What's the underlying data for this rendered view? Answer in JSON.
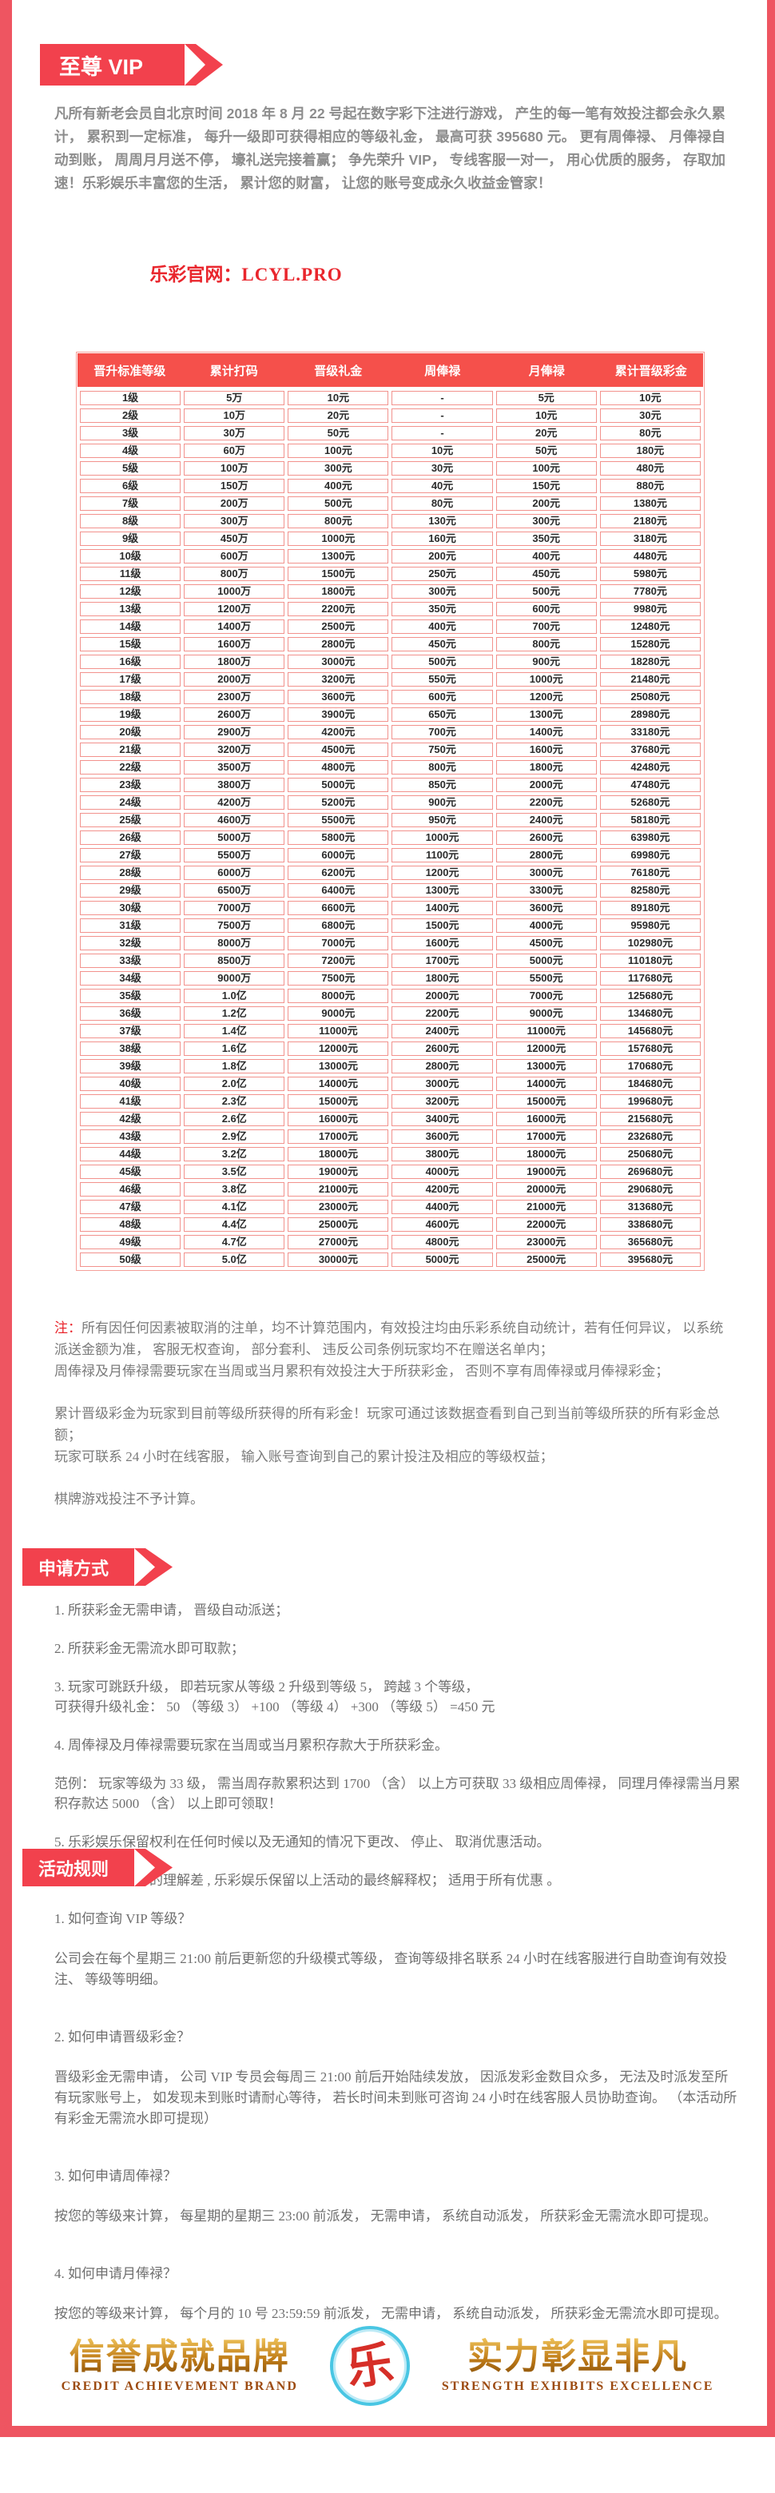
{
  "colors": {
    "accent_red": "#f2414d",
    "stripe_red": "#ee5561",
    "table_header_red": "#f5504b",
    "table_border_pink": "#f2928d",
    "red_text": "#e9262d",
    "intro_gray": "#8d8d8d",
    "gold": "#c07c18",
    "logo_cyan": "#49c6e3"
  },
  "header": {
    "ribbon": "至尊 VIP",
    "intro": "凡所有新老会员自北京时间 2018 年 8 月 22 号起在数字彩下注进行游戏， 产生的每一笔有效投注都会永久累计， 累积到一定标准， 每升一级即可获得相应的等级礼金， 最高可获 395680 元。 更有周俸禄、 月俸禄自动到账， 周周月月送不停， 壕礼送完接着赢； 争先荣升 VIP， 专线客服一对一， 用心优质的服务， 存取加速！乐彩娱乐丰富您的生活， 累计您的财富， 让您的账号变成永久收益金管家！",
    "site_label": "乐彩官网：",
    "site_domain": "LCYL.PRO"
  },
  "table": {
    "headers": [
      "晋升标准等级",
      "累计打码",
      "晋级礼金",
      "周俸禄",
      "月俸禄",
      "累计晋级彩金"
    ],
    "rows": [
      [
        "1级",
        "5万",
        "10元",
        "-",
        "5元",
        "10元"
      ],
      [
        "2级",
        "10万",
        "20元",
        "-",
        "10元",
        "30元"
      ],
      [
        "3级",
        "30万",
        "50元",
        "-",
        "20元",
        "80元"
      ],
      [
        "4级",
        "60万",
        "100元",
        "10元",
        "50元",
        "180元"
      ],
      [
        "5级",
        "100万",
        "300元",
        "30元",
        "100元",
        "480元"
      ],
      [
        "6级",
        "150万",
        "400元",
        "40元",
        "150元",
        "880元"
      ],
      [
        "7级",
        "200万",
        "500元",
        "80元",
        "200元",
        "1380元"
      ],
      [
        "8级",
        "300万",
        "800元",
        "130元",
        "300元",
        "2180元"
      ],
      [
        "9级",
        "450万",
        "1000元",
        "160元",
        "350元",
        "3180元"
      ],
      [
        "10级",
        "600万",
        "1300元",
        "200元",
        "400元",
        "4480元"
      ],
      [
        "11级",
        "800万",
        "1500元",
        "250元",
        "450元",
        "5980元"
      ],
      [
        "12级",
        "1000万",
        "1800元",
        "300元",
        "500元",
        "7780元"
      ],
      [
        "13级",
        "1200万",
        "2200元",
        "350元",
        "600元",
        "9980元"
      ],
      [
        "14级",
        "1400万",
        "2500元",
        "400元",
        "700元",
        "12480元"
      ],
      [
        "15级",
        "1600万",
        "2800元",
        "450元",
        "800元",
        "15280元"
      ],
      [
        "16级",
        "1800万",
        "3000元",
        "500元",
        "900元",
        "18280元"
      ],
      [
        "17级",
        "2000万",
        "3200元",
        "550元",
        "1000元",
        "21480元"
      ],
      [
        "18级",
        "2300万",
        "3600元",
        "600元",
        "1200元",
        "25080元"
      ],
      [
        "19级",
        "2600万",
        "3900元",
        "650元",
        "1300元",
        "28980元"
      ],
      [
        "20级",
        "2900万",
        "4200元",
        "700元",
        "1400元",
        "33180元"
      ],
      [
        "21级",
        "3200万",
        "4500元",
        "750元",
        "1600元",
        "37680元"
      ],
      [
        "22级",
        "3500万",
        "4800元",
        "800元",
        "1800元",
        "42480元"
      ],
      [
        "23级",
        "3800万",
        "5000元",
        "850元",
        "2000元",
        "47480元"
      ],
      [
        "24级",
        "4200万",
        "5200元",
        "900元",
        "2200元",
        "52680元"
      ],
      [
        "25级",
        "4600万",
        "5500元",
        "950元",
        "2400元",
        "58180元"
      ],
      [
        "26级",
        "5000万",
        "5800元",
        "1000元",
        "2600元",
        "63980元"
      ],
      [
        "27级",
        "5500万",
        "6000元",
        "1100元",
        "2800元",
        "69980元"
      ],
      [
        "28级",
        "6000万",
        "6200元",
        "1200元",
        "3000元",
        "76180元"
      ],
      [
        "29级",
        "6500万",
        "6400元",
        "1300元",
        "3300元",
        "82580元"
      ],
      [
        "30级",
        "7000万",
        "6600元",
        "1400元",
        "3600元",
        "89180元"
      ],
      [
        "31级",
        "7500万",
        "6800元",
        "1500元",
        "4000元",
        "95980元"
      ],
      [
        "32级",
        "8000万",
        "7000元",
        "1600元",
        "4500元",
        "102980元"
      ],
      [
        "33级",
        "8500万",
        "7200元",
        "1700元",
        "5000元",
        "110180元"
      ],
      [
        "34级",
        "9000万",
        "7500元",
        "1800元",
        "5500元",
        "117680元"
      ],
      [
        "35级",
        "1.0亿",
        "8000元",
        "2000元",
        "7000元",
        "125680元"
      ],
      [
        "36级",
        "1.2亿",
        "9000元",
        "2200元",
        "9000元",
        "134680元"
      ],
      [
        "37级",
        "1.4亿",
        "11000元",
        "2400元",
        "11000元",
        "145680元"
      ],
      [
        "38级",
        "1.6亿",
        "12000元",
        "2600元",
        "12000元",
        "157680元"
      ],
      [
        "39级",
        "1.8亿",
        "13000元",
        "2800元",
        "13000元",
        "170680元"
      ],
      [
        "40级",
        "2.0亿",
        "14000元",
        "3000元",
        "14000元",
        "184680元"
      ],
      [
        "41级",
        "2.3亿",
        "15000元",
        "3200元",
        "15000元",
        "199680元"
      ],
      [
        "42级",
        "2.6亿",
        "16000元",
        "3400元",
        "16000元",
        "215680元"
      ],
      [
        "43级",
        "2.9亿",
        "17000元",
        "3600元",
        "17000元",
        "232680元"
      ],
      [
        "44级",
        "3.2亿",
        "18000元",
        "3800元",
        "18000元",
        "250680元"
      ],
      [
        "45级",
        "3.5亿",
        "19000元",
        "4000元",
        "19000元",
        "269680元"
      ],
      [
        "46级",
        "3.8亿",
        "21000元",
        "4200元",
        "20000元",
        "290680元"
      ],
      [
        "47级",
        "4.1亿",
        "23000元",
        "4400元",
        "21000元",
        "313680元"
      ],
      [
        "48级",
        "4.4亿",
        "25000元",
        "4600元",
        "22000元",
        "338680元"
      ],
      [
        "49级",
        "4.7亿",
        "27000元",
        "4800元",
        "23000元",
        "365680元"
      ],
      [
        "50级",
        "5.0亿",
        "30000元",
        "5000元",
        "25000元",
        "395680元"
      ]
    ]
  },
  "notes": {
    "prefix": "注：",
    "items": [
      "所有因任何因素被取消的注单，均不计算范围内，有效投注均由乐彩系统自动统计，若有任何异议， 以系统派送金额为准， 客服无权查询， 部分套利、 违反公司条例玩家均不在赠送名单内；",
      "周俸禄及月俸禄需要玩家在当周或当月累积有效投注大于所获彩金， 否则不享有周俸禄或月俸禄彩金；",
      "累计晋级彩金为玩家到目前等级所获得的所有彩金！玩家可通过该数据查看到自己到当前等级所获的所有彩金总额；",
      "玩家可联系 24 小时在线客服， 输入账号查询到自己的累计投注及相应的等级权益；",
      "棋牌游戏投注不予计算。"
    ]
  },
  "apply": {
    "ribbon": "申请方式",
    "items": [
      "1. 所获彩金无需申请， 晋级自动派送；",
      "2. 所获彩金无需流水即可取款；",
      "3. 玩家可跳跃升级， 即若玩家从等级 2 升级到等级 5， 跨越 3 个等级，\n可获得升级礼金： 50 （等级 3） +100 （等级 4） +300 （等级 5） =450 元",
      "4. 周俸禄及月俸禄需要玩家在当周或当月累积存款大于所获彩金。",
      "范例： 玩家等级为 33 级， 需当周存款累积达到 1700 （含） 以上方可获取 33 级相应周俸禄， 同理月俸禄需当月累积存款达 5000 （含） 以上即可领取！",
      "5. 乐彩娱乐保留权利在任何时候以及无通知的情况下更改、 停止、 取消优惠活动。",
      "6. 为避免对文字的理解差 , 乐彩娱乐保留以上活动的最终解释权； 适用于所有优惠 。"
    ]
  },
  "rules": {
    "ribbon": "活动规则",
    "qa": [
      {
        "q": "1. 如何查询 VIP 等级？",
        "a": "公司会在每个星期三 21:00 前后更新您的升级模式等级， 查询等级排名联系 24 小时在线客服进行自助查询有效投注、 等级等明细。"
      },
      {
        "q": "2. 如何申请晋级彩金？",
        "a": "晋级彩金无需申请， 公司 VIP 专员会每周三 21:00 前后开始陆续发放， 因派发彩金数目众多， 无法及时派发至所有玩家账号上， 如发现未到账时请耐心等待， 若长时间未到账可咨询 24 小时在线客服人员协助查询。 （本活动所有彩金无需流水即可提现）"
      },
      {
        "q": "3. 如何申请周俸禄？",
        "a": "按您的等级来计算， 每星期的星期三 23:00 前派发， 无需申请， 系统自动派发， 所获彩金无需流水即可提现。"
      },
      {
        "q": "4. 如何申请月俸禄？",
        "a": "按您的等级来计算， 每个月的 10 号 23:59:59 前派发， 无需申请， 系统自动派发， 所获彩金无需流水即可提现。"
      }
    ]
  },
  "footer": {
    "left_title": "信誉成就品牌",
    "left_caption": "CREDIT ACHIEVEMENT BRAND",
    "logo_char": "乐",
    "right_title": "实力彰显非凡",
    "right_caption": "STRENGTH EXHIBITS EXCELLENCE"
  }
}
